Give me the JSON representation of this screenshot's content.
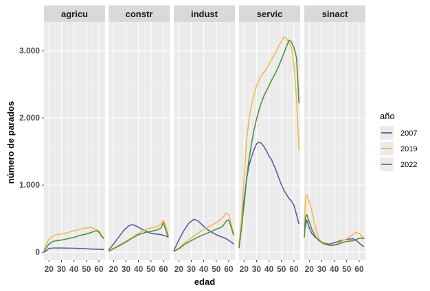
{
  "chart_data": {
    "type": "line",
    "facets": [
      "agricu",
      "constr",
      "indust",
      "servic",
      "sinact"
    ],
    "xlabel": "edad",
    "ylabel": "número de parados",
    "xticks": [
      20,
      30,
      40,
      50,
      60
    ],
    "xlim": [
      16,
      65
    ],
    "yticks": [
      0,
      1000,
      2000,
      3000
    ],
    "ytick_labels": [
      "0",
      "1.000",
      "2.000",
      "3.000"
    ],
    "ylim": [
      -120,
      3430
    ],
    "legend_title": "año",
    "legend_position": "right",
    "grid": true,
    "series": [
      {
        "name": "2007",
        "color": "#5b5aa3",
        "panels": {
          "agricu": [
            [
              16,
              0
            ],
            [
              18,
              20
            ],
            [
              20,
              55
            ],
            [
              22,
              60
            ],
            [
              25,
              62
            ],
            [
              30,
              62
            ],
            [
              35,
              60
            ],
            [
              40,
              58
            ],
            [
              45,
              55
            ],
            [
              50,
              50
            ],
            [
              55,
              45
            ],
            [
              60,
              42
            ],
            [
              64,
              40
            ]
          ],
          "constr": [
            [
              16,
              30
            ],
            [
              20,
              120
            ],
            [
              24,
              220
            ],
            [
              28,
              320
            ],
            [
              32,
              390
            ],
            [
              35,
              410
            ],
            [
              38,
              390
            ],
            [
              42,
              350
            ],
            [
              46,
              310
            ],
            [
              50,
              280
            ],
            [
              54,
              270
            ],
            [
              58,
              260
            ],
            [
              62,
              240
            ],
            [
              64,
              220
            ]
          ],
          "indust": [
            [
              16,
              20
            ],
            [
              20,
              180
            ],
            [
              24,
              320
            ],
            [
              28,
              430
            ],
            [
              32,
              490
            ],
            [
              35,
              470
            ],
            [
              38,
              420
            ],
            [
              42,
              350
            ],
            [
              46,
              300
            ],
            [
              50,
              260
            ],
            [
              54,
              230
            ],
            [
              58,
              200
            ],
            [
              62,
              150
            ],
            [
              64,
              120
            ]
          ],
          "servic": [
            [
              16,
              120
            ],
            [
              18,
              420
            ],
            [
              20,
              780
            ],
            [
              22,
              1080
            ],
            [
              24,
              1290
            ],
            [
              26,
              1420
            ],
            [
              28,
              1530
            ],
            [
              30,
              1610
            ],
            [
              32,
              1640
            ],
            [
              34,
              1620
            ],
            [
              36,
              1570
            ],
            [
              38,
              1510
            ],
            [
              40,
              1430
            ],
            [
              42,
              1380
            ],
            [
              44,
              1290
            ],
            [
              46,
              1200
            ],
            [
              48,
              1100
            ],
            [
              50,
              1000
            ],
            [
              52,
              920
            ],
            [
              54,
              860
            ],
            [
              56,
              800
            ],
            [
              58,
              760
            ],
            [
              60,
              700
            ],
            [
              62,
              560
            ],
            [
              64,
              420
            ]
          ],
          "sinact": [
            [
              16,
              300
            ],
            [
              18,
              480
            ],
            [
              20,
              360
            ],
            [
              22,
              280
            ],
            [
              25,
              220
            ],
            [
              28,
              170
            ],
            [
              30,
              150
            ],
            [
              33,
              130
            ],
            [
              36,
              120
            ],
            [
              40,
              140
            ],
            [
              45,
              170
            ],
            [
              50,
              190
            ],
            [
              55,
              200
            ],
            [
              58,
              170
            ],
            [
              61,
              120
            ],
            [
              64,
              80
            ]
          ]
        }
      },
      {
        "name": "2019",
        "color": "#f5b750",
        "panels": {
          "agricu": [
            [
              16,
              20
            ],
            [
              18,
              120
            ],
            [
              20,
              190
            ],
            [
              23,
              240
            ],
            [
              26,
              260
            ],
            [
              30,
              270
            ],
            [
              35,
              290
            ],
            [
              40,
              320
            ],
            [
              45,
              340
            ],
            [
              50,
              360
            ],
            [
              53,
              370
            ],
            [
              56,
              350
            ],
            [
              60,
              320
            ],
            [
              62,
              260
            ],
            [
              64,
              200
            ]
          ],
          "constr": [
            [
              16,
              20
            ],
            [
              20,
              60
            ],
            [
              25,
              110
            ],
            [
              30,
              160
            ],
            [
              35,
              220
            ],
            [
              40,
              280
            ],
            [
              45,
              330
            ],
            [
              50,
              360
            ],
            [
              55,
              380
            ],
            [
              58,
              420
            ],
            [
              60,
              480
            ],
            [
              62,
              380
            ],
            [
              64,
              240
            ]
          ],
          "indust": [
            [
              16,
              10
            ],
            [
              20,
              60
            ],
            [
              25,
              140
            ],
            [
              30,
              210
            ],
            [
              35,
              280
            ],
            [
              40,
              340
            ],
            [
              45,
              390
            ],
            [
              50,
              440
            ],
            [
              55,
              510
            ],
            [
              58,
              580
            ],
            [
              60,
              560
            ],
            [
              62,
              420
            ],
            [
              64,
              260
            ]
          ],
          "servic": [
            [
              16,
              80
            ],
            [
              18,
              500
            ],
            [
              20,
              1100
            ],
            [
              22,
              1650
            ],
            [
              24,
              1980
            ],
            [
              26,
              2200
            ],
            [
              28,
              2350
            ],
            [
              30,
              2480
            ],
            [
              33,
              2600
            ],
            [
              36,
              2680
            ],
            [
              39,
              2760
            ],
            [
              42,
              2870
            ],
            [
              45,
              2960
            ],
            [
              48,
              3080
            ],
            [
              50,
              3140
            ],
            [
              52,
              3210
            ],
            [
              54,
              3180
            ],
            [
              56,
              3120
            ],
            [
              58,
              3050
            ],
            [
              60,
              2800
            ],
            [
              62,
              2300
            ],
            [
              64,
              1520
            ]
          ],
          "sinact": [
            [
              16,
              380
            ],
            [
              17,
              820
            ],
            [
              18,
              850
            ],
            [
              20,
              750
            ],
            [
              22,
              620
            ],
            [
              24,
              440
            ],
            [
              26,
              300
            ],
            [
              28,
              200
            ],
            [
              30,
              150
            ],
            [
              33,
              120
            ],
            [
              36,
              105
            ],
            [
              40,
              110
            ],
            [
              45,
              150
            ],
            [
              50,
              200
            ],
            [
              54,
              250
            ],
            [
              57,
              290
            ],
            [
              60,
              280
            ],
            [
              62,
              240
            ],
            [
              64,
              200
            ]
          ]
        }
      },
      {
        "name": "2022",
        "color": "#4e8f3e",
        "panels": {
          "agricu": [
            [
              16,
              10
            ],
            [
              18,
              70
            ],
            [
              20,
              120
            ],
            [
              23,
              160
            ],
            [
              26,
              170
            ],
            [
              30,
              180
            ],
            [
              35,
              200
            ],
            [
              40,
              220
            ],
            [
              45,
              250
            ],
            [
              50,
              270
            ],
            [
              55,
              300
            ],
            [
              58,
              320
            ],
            [
              60,
              300
            ],
            [
              62,
              240
            ],
            [
              64,
              200
            ]
          ],
          "constr": [
            [
              16,
              10
            ],
            [
              20,
              50
            ],
            [
              25,
              100
            ],
            [
              30,
              150
            ],
            [
              35,
              210
            ],
            [
              40,
              260
            ],
            [
              45,
              290
            ],
            [
              50,
              310
            ],
            [
              55,
              330
            ],
            [
              58,
              360
            ],
            [
              60,
              440
            ],
            [
              62,
              320
            ],
            [
              64,
              220
            ]
          ],
          "indust": [
            [
              16,
              10
            ],
            [
              20,
              50
            ],
            [
              25,
              120
            ],
            [
              30,
              170
            ],
            [
              35,
              220
            ],
            [
              40,
              260
            ],
            [
              45,
              300
            ],
            [
              50,
              340
            ],
            [
              55,
              380
            ],
            [
              58,
              460
            ],
            [
              60,
              480
            ],
            [
              62,
              370
            ],
            [
              64,
              250
            ]
          ],
          "servic": [
            [
              16,
              60
            ],
            [
              18,
              360
            ],
            [
              20,
              700
            ],
            [
              22,
              1080
            ],
            [
              24,
              1380
            ],
            [
              26,
              1620
            ],
            [
              28,
              1820
            ],
            [
              30,
              1980
            ],
            [
              33,
              2180
            ],
            [
              36,
              2330
            ],
            [
              39,
              2440
            ],
            [
              42,
              2560
            ],
            [
              45,
              2660
            ],
            [
              48,
              2780
            ],
            [
              51,
              2920
            ],
            [
              54,
              3060
            ],
            [
              56,
              3160
            ],
            [
              58,
              3130
            ],
            [
              60,
              3050
            ],
            [
              62,
              2900
            ],
            [
              63,
              2600
            ],
            [
              64,
              2220
            ]
          ],
          "sinact": [
            [
              16,
              220
            ],
            [
              17,
              520
            ],
            [
              18,
              560
            ],
            [
              20,
              450
            ],
            [
              22,
              340
            ],
            [
              25,
              230
            ],
            [
              28,
              170
            ],
            [
              31,
              130
            ],
            [
              34,
              110
            ],
            [
              38,
              100
            ],
            [
              42,
              110
            ],
            [
              46,
              140
            ],
            [
              50,
              160
            ],
            [
              55,
              170
            ],
            [
              59,
              200
            ],
            [
              62,
              210
            ],
            [
              64,
              200
            ]
          ]
        }
      }
    ]
  }
}
